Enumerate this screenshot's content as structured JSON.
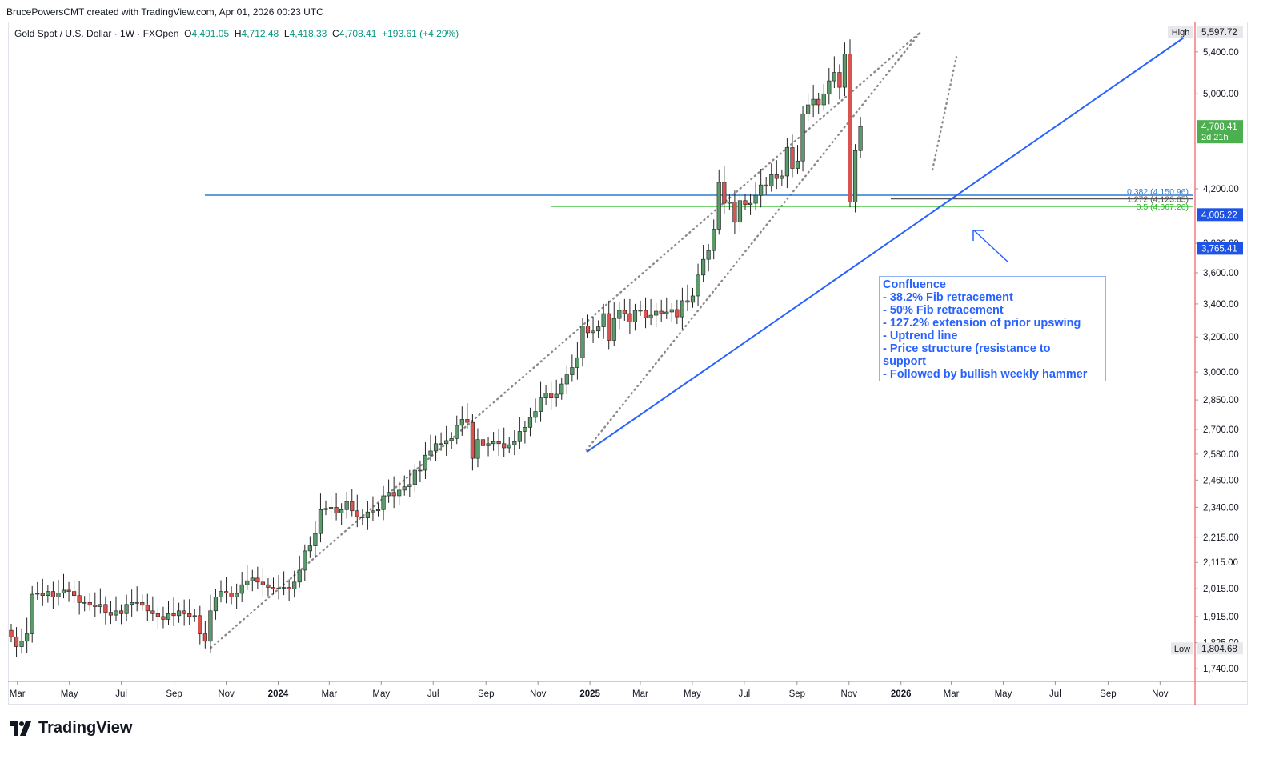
{
  "header": {
    "credit": "BrucePowersCMT created with TradingView.com, Apr 01, 2026 00:23 UTC",
    "symbol": "Gold Spot / U.S. Dollar · 1W · FXOpen",
    "ohlc": {
      "o_label": "O",
      "o": "4,491.05",
      "h_label": "H",
      "h": "4,712.48",
      "l_label": "L",
      "l": "4,418.33",
      "c_label": "C",
      "c": "4,708.41",
      "change": "+193.61 (+4.29%)"
    }
  },
  "brand": {
    "name": "TradingView",
    "logo_icon": "tradingview-logo-icon"
  },
  "colors": {
    "up": "#4caf50",
    "down": "#f23645",
    "up_body": "#5b9a6a",
    "down_body": "#d9534f",
    "trend": "#2962ff",
    "fib_blue": "#2c7bd4",
    "fib_green": "#22b81a",
    "grid_axis": "#e0e3eb",
    "today": "#f23645"
  },
  "annotation": {
    "lines": [
      "Confluence",
      "- 38.2% Fib retracement",
      "- 50% Fib retracement",
      "- 127.2% extension of prior upswing",
      "- Uptrend line",
      "- Price structure (resistance to",
      "support",
      "- Followed by bullish weekly hammer"
    ]
  },
  "chart_data": {
    "type": "candlestick",
    "timeframe": "1W",
    "y_scale": "log",
    "currency_label": "USD",
    "ylim": [
      1700,
      5700
    ],
    "y_ticks": [
      1740,
      1825,
      1915,
      2015,
      2115,
      2215,
      2340,
      2460,
      2580,
      2700,
      2850,
      3000,
      3200,
      3400,
      3600,
      3800,
      4200,
      5000,
      5400
    ],
    "y_tick_labels": [
      "1,740.00",
      "1,825.00",
      "1,915.00",
      "2,015.00",
      "2,115.00",
      "2,215.00",
      "2,340.00",
      "2,460.00",
      "2,580.00",
      "2,700.00",
      "2,850.00",
      "3,000.00",
      "3,200.00",
      "3,400.00",
      "3,600.00",
      "3,800.00",
      "4,200.00",
      "5,000.00",
      "5,400.00"
    ],
    "x_ticks": [
      {
        "date": "2023-03-01",
        "label": "Mar"
      },
      {
        "date": "2023-05-01",
        "label": "May"
      },
      {
        "date": "2023-07-01",
        "label": "Jul"
      },
      {
        "date": "2023-09-01",
        "label": "Sep"
      },
      {
        "date": "2023-11-01",
        "label": "Nov"
      },
      {
        "date": "2024-01-01",
        "label": "2024"
      },
      {
        "date": "2024-03-01",
        "label": "Mar"
      },
      {
        "date": "2024-05-01",
        "label": "May"
      },
      {
        "date": "2024-07-01",
        "label": "Jul"
      },
      {
        "date": "2024-09-01",
        "label": "Sep"
      },
      {
        "date": "2024-11-01",
        "label": "Nov"
      },
      {
        "date": "2025-01-01",
        "label": "2025"
      },
      {
        "date": "2025-03-01",
        "label": "Mar"
      },
      {
        "date": "2025-05-01",
        "label": "May"
      },
      {
        "date": "2025-07-01",
        "label": "Jul"
      },
      {
        "date": "2025-09-01",
        "label": "Sep"
      },
      {
        "date": "2025-11-01",
        "label": "Nov"
      },
      {
        "date": "2026-01-01",
        "label": "2026"
      },
      {
        "date": "2026-03-01",
        "label": "Mar"
      },
      {
        "date": "2026-05-01",
        "label": "May"
      },
      {
        "date": "2026-07-01",
        "label": "Jul"
      },
      {
        "date": "2026-09-01",
        "label": "Sep"
      },
      {
        "date": "2026-11-01",
        "label": "Nov"
      }
    ],
    "x_range": [
      "2023-02-18",
      "2026-12-12"
    ],
    "today_line_date": "2026-12-12",
    "candle_closes": [
      1845,
      1812,
      1830,
      1855,
      1995,
      1998,
      1990,
      2005,
      1985,
      2000,
      2010,
      2005,
      1990,
      1965,
      1965,
      1955,
      1950,
      1958,
      1930,
      1920,
      1935,
      1925,
      1958,
      1965,
      1965,
      1955,
      1935,
      1925,
      1915,
      1905,
      1925,
      1918,
      1935,
      1925,
      1915,
      1918,
      1855,
      1830,
      1935,
      1985,
      2005,
      2000,
      1985,
      1998,
      2030,
      2045,
      2055,
      2040,
      2030,
      2020,
      2015,
      2018,
      2020,
      2015,
      2040,
      2085,
      2160,
      2180,
      2230,
      2330,
      2335,
      2340,
      2315,
      2330,
      2365,
      2325,
      2300,
      2295,
      2320,
      2325,
      2330,
      2390,
      2405,
      2390,
      2415,
      2430,
      2440,
      2505,
      2505,
      2575,
      2595,
      2630,
      2630,
      2645,
      2655,
      2720,
      2750,
      2735,
      2560,
      2650,
      2620,
      2630,
      2640,
      2630,
      2610,
      2625,
      2640,
      2690,
      2710,
      2760,
      2790,
      2860,
      2885,
      2860,
      2880,
      2935,
      2985,
      3025,
      3080,
      3265,
      3225,
      3235,
      3260,
      3340,
      3180,
      3310,
      3360,
      3340,
      3290,
      3360,
      3360,
      3315,
      3330,
      3355,
      3340,
      3350,
      3365,
      3320,
      3420,
      3410,
      3450,
      3585,
      3690,
      3750,
      3900,
      4250,
      4090,
      4100,
      3950,
      4110,
      4080,
      4090,
      4150,
      4230,
      4220,
      4310,
      4280,
      4300,
      4530,
      4360,
      4420,
      4820,
      4900,
      4950,
      4900,
      5000,
      5120,
      5200,
      5060,
      5380,
      4100,
      4505,
      4708.41
    ],
    "current_price": 4708.41,
    "price_labels": [
      {
        "label": "High",
        "value": 5597.72,
        "text": "5,597.72"
      },
      {
        "label": "Low",
        "value": 1804.68,
        "text": "1,804.68"
      },
      {
        "value": 4708.41,
        "text": "4,708.41",
        "sub": "2d 21h"
      },
      {
        "value": 4005.22,
        "text": "4,005.22"
      },
      {
        "value": 3765.41,
        "text": "3,765.41"
      }
    ],
    "fib_levels": [
      {
        "ratio": "0.382",
        "value": 4150.96,
        "text": "0.382 (4,150.96)",
        "start": "2023-10-07"
      },
      {
        "ratio": "1.272",
        "value": 4123.65,
        "text": "1.272 (4,123.65)",
        "start": "2025-12-20"
      },
      {
        "ratio": "0.5",
        "value": 4067.26,
        "text": "0.5 (4,067.26)",
        "start": "2024-11-16"
      }
    ],
    "trendline": {
      "from": {
        "date": "2024-12-28",
        "price": 2590
      },
      "to": {
        "date": "2026-12-05",
        "price": 5580
      }
    },
    "dotted_channel": [
      {
        "from": {
          "date": "2023-10-14",
          "price": 1808
        },
        "to": {
          "date": "2026-01-24",
          "price": 5600
        }
      },
      {
        "from": {
          "date": "2024-12-28",
          "price": 2600
        },
        "to": {
          "date": "2026-01-24",
          "price": 5600
        }
      },
      {
        "from": {
          "date": "2026-02-07",
          "price": 4350
        },
        "to": {
          "date": "2026-03-07",
          "price": 5350
        }
      }
    ]
  }
}
